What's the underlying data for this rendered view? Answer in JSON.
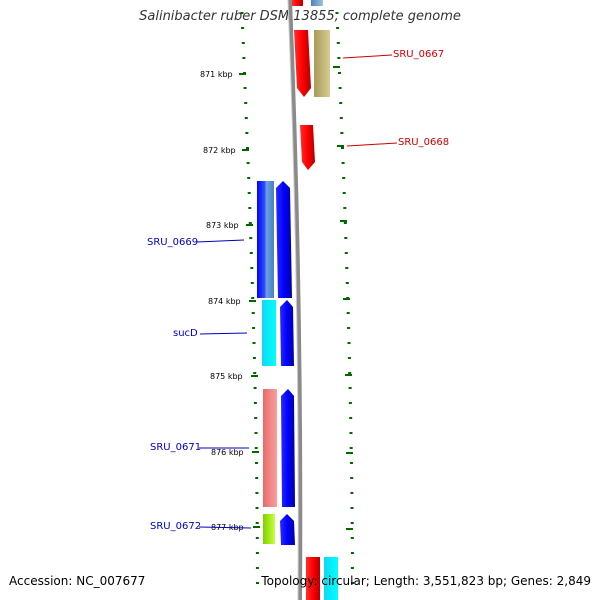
{
  "title": "Salinibacter ruber DSM 13855, complete genome",
  "accession": "Accession: NC_007677",
  "topology": "Topology: circular; Length: 3,551,823 bp; Genes: 2,849",
  "ruler": {
    "labels": [
      "871 kbp",
      "872 kbp",
      "873 kbp",
      "874 kbp",
      "875 kbp",
      "876 kbp",
      "877 kbp"
    ]
  },
  "colors": {
    "tick": "#006600",
    "backbone": "#8a8a8a",
    "label_forward": "#cc0000",
    "label_reverse": "#0000bb"
  },
  "genes": [
    {
      "label": "SRU_0667",
      "color": "#cc0000"
    },
    {
      "label": "SRU_0668",
      "color": "#cc0000"
    },
    {
      "label": "SRU_0669",
      "color": "#0000bb"
    },
    {
      "label": "sucD",
      "color": "#0000bb"
    },
    {
      "label": "SRU_0671",
      "color": "#0000bb"
    },
    {
      "label": "SRU_0672",
      "color": "#0000bb"
    }
  ]
}
